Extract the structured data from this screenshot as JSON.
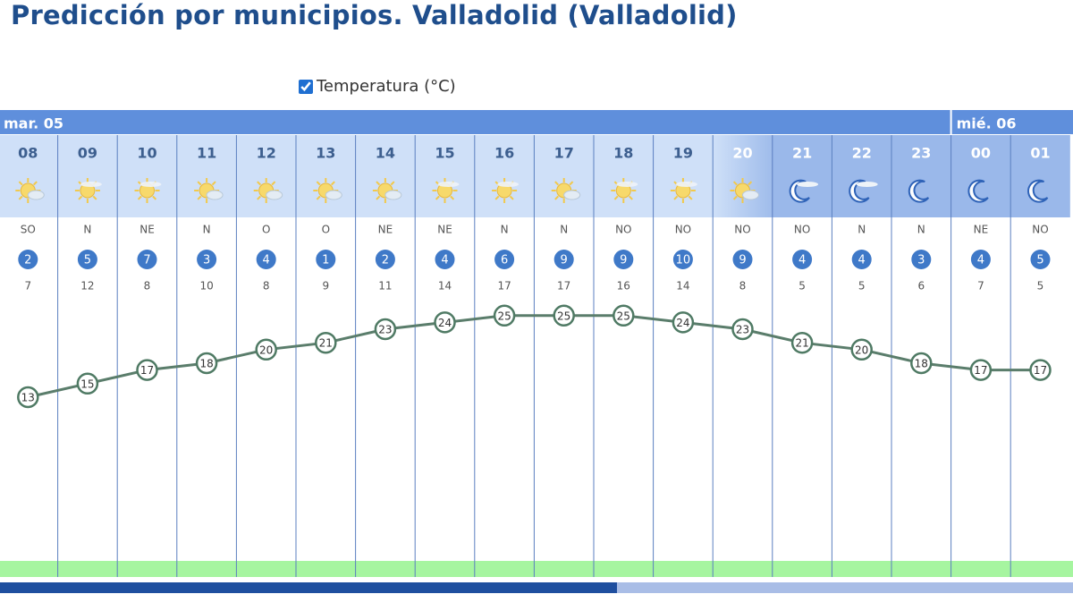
{
  "header": {
    "title": "Predicción por municipios. Valladolid (Valladolid)"
  },
  "legend": {
    "label": "Temperatura (°C)",
    "checked": true
  },
  "days": [
    "mar. 05",
    "mié. 06"
  ],
  "hours": [
    "08",
    "09",
    "10",
    "11",
    "12",
    "13",
    "14",
    "15",
    "16",
    "17",
    "18",
    "19",
    "20",
    "21",
    "22",
    "23",
    "00",
    "01"
  ],
  "wind_direction": [
    "SO",
    "N",
    "NE",
    "N",
    "O",
    "O",
    "NE",
    "NE",
    "N",
    "N",
    "NO",
    "NO",
    "NO",
    "NO",
    "N",
    "N",
    "NE",
    "NO"
  ],
  "wind_speed": [
    2,
    5,
    7,
    3,
    4,
    1,
    2,
    4,
    6,
    9,
    9,
    10,
    9,
    4,
    4,
    3,
    4,
    5
  ],
  "gust": [
    7,
    12,
    8,
    10,
    8,
    9,
    11,
    14,
    17,
    17,
    16,
    14,
    8,
    5,
    5,
    6,
    7,
    5
  ],
  "temperature": [
    13,
    15,
    17,
    18,
    20,
    21,
    23,
    24,
    25,
    25,
    25,
    24,
    23,
    21,
    20,
    18,
    17,
    17
  ]
}
